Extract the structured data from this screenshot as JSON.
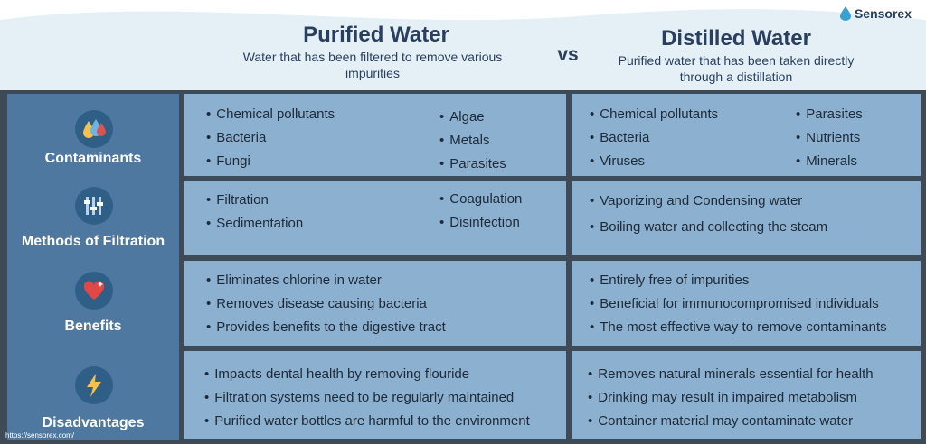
{
  "brand": {
    "name": "Sensorex"
  },
  "header": {
    "left_title": "Purified Water",
    "left_subtitle": "Water that has been filtered to remove various impurities",
    "vs": "vs",
    "right_title": "Distilled Water",
    "right_subtitle": "Purified water that has been taken directly through a distillation"
  },
  "rows": [
    {
      "label": "Contaminants",
      "icon": "water-drops-icon",
      "purified": [
        "Chemical pollutants",
        "Bacteria",
        "Fungi",
        "Algae",
        "Metals",
        "Parasites"
      ],
      "distilled": [
        "Chemical pollutants",
        "Bacteria",
        "Viruses",
        "Parasites",
        "Nutrients",
        "Minerals"
      ]
    },
    {
      "label": "Methods of Filtration",
      "icon": "filter-sliders-icon",
      "purified": [
        "Filtration",
        "Sedimentation",
        "Coagulation",
        "Disinfection"
      ],
      "distilled": [
        "Vaporizing and Condensing water",
        "Boiling water and collecting the steam"
      ]
    },
    {
      "label": "Benefits",
      "icon": "heart-icon",
      "purified": [
        "Eliminates chlorine in water",
        "Removes disease causing bacteria",
        "Provides benefits to the digestive tract"
      ],
      "distilled": [
        "Entirely free of impurities",
        "Beneficial for immunocompromised individuals",
        "The most effective way to remove contaminants"
      ]
    },
    {
      "label": "Disadvantages",
      "icon": "lightning-icon",
      "purified": [
        "Impacts dental health by removing flouride",
        "Filtration systems need to be regularly maintained",
        "Purified water bottles are harmful to the environment"
      ],
      "distilled": [
        "Removes natural minerals essential for health",
        "Drinking may result in impaired metabolism",
        "Container material may contaminate water"
      ]
    }
  ],
  "footer": {
    "url": "https://sensorex.com/"
  },
  "colors": {
    "header_bg": "#e4f0f6",
    "title_text": "#2a3f60",
    "sidebar_bg": "#4e78a0",
    "cell_bg": "#8cb0cf",
    "border": "#3e4a55"
  }
}
